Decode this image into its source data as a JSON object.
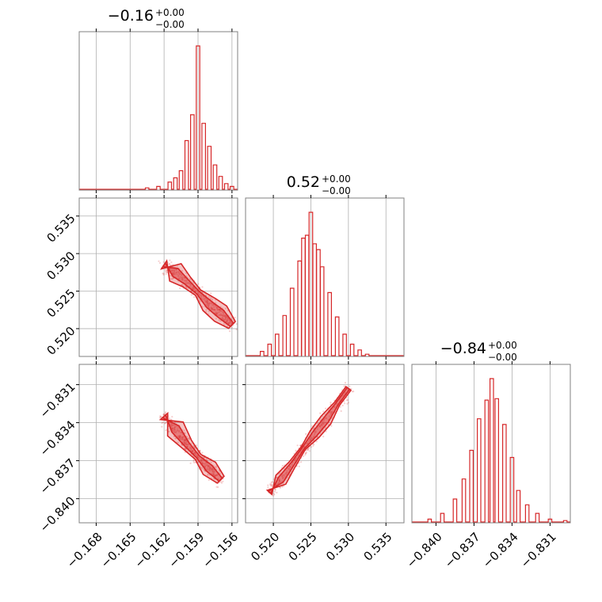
{
  "chart_data": {
    "type": "corner",
    "accent_color": "#d62728",
    "parameters": [
      {
        "title_value": "−0.16",
        "title_plus": "+0.00",
        "title_minus": "−0.00",
        "range": [
          -0.1695,
          -0.1555
        ],
        "ticks": [
          -0.168,
          -0.165,
          -0.162,
          -0.159,
          -0.156
        ],
        "tick_labels": [
          "−0.168",
          "−0.165",
          "−0.162",
          "−0.159",
          "−0.156"
        ],
        "hist_x": [
          -0.1635,
          -0.1625,
          -0.1615,
          -0.161,
          -0.1605,
          -0.16,
          -0.1595,
          -0.159,
          -0.1585,
          -0.158,
          -0.1575,
          -0.157,
          -0.1565,
          -0.156
        ],
        "hist_y": [
          0.01,
          0.02,
          0.05,
          0.08,
          0.13,
          0.34,
          0.52,
          1.0,
          0.46,
          0.3,
          0.17,
          0.09,
          0.04,
          0.02
        ]
      },
      {
        "title_value": "0.52",
        "title_plus": "+0.00",
        "title_minus": "−0.00",
        "range": [
          0.5163,
          0.5374
        ],
        "ticks": [
          0.52,
          0.525,
          0.53,
          0.535
        ],
        "tick_labels": [
          "0.520",
          "0.525",
          "0.530",
          "0.535"
        ],
        "hist_x": [
          0.5185,
          0.5195,
          0.5205,
          0.5215,
          0.5225,
          0.5235,
          0.524,
          0.5245,
          0.525,
          0.5255,
          0.526,
          0.5265,
          0.5275,
          0.5285,
          0.5295,
          0.5305,
          0.5315,
          0.5325
        ],
        "hist_y": [
          0.03,
          0.08,
          0.15,
          0.28,
          0.47,
          0.66,
          0.82,
          0.84,
          1.0,
          0.78,
          0.74,
          0.62,
          0.44,
          0.27,
          0.15,
          0.08,
          0.04,
          0.01
        ]
      },
      {
        "title_value": "−0.84",
        "title_plus": "+0.00",
        "title_minus": "−0.00",
        "range": [
          -0.8419,
          -0.8294
        ],
        "ticks": [
          -0.84,
          -0.837,
          -0.834,
          -0.831
        ],
        "tick_labels": [
          "−0.840",
          "−0.837",
          "−0.834",
          "−0.831"
        ],
        "hist_x": [
          -0.8405,
          -0.8395,
          -0.8385,
          -0.8378,
          -0.8372,
          -0.8366,
          -0.836,
          -0.8356,
          -0.8352,
          -0.8346,
          -0.834,
          -0.8335,
          -0.8328,
          -0.832,
          -0.831,
          -0.8298
        ],
        "hist_y": [
          0.02,
          0.06,
          0.16,
          0.3,
          0.5,
          0.72,
          0.85,
          1.0,
          0.86,
          0.68,
          0.45,
          0.22,
          0.12,
          0.06,
          0.02,
          0.01
        ]
      }
    ],
    "pairs": [
      {
        "row": 1,
        "col": 0,
        "ridge": [
          [
            -0.162,
            0.5285
          ],
          [
            -0.161,
            0.5275
          ],
          [
            -0.16,
            0.5262
          ],
          [
            -0.159,
            0.5248
          ],
          [
            -0.158,
            0.5232
          ],
          [
            -0.157,
            0.522
          ],
          [
            -0.156,
            0.5205
          ]
        ]
      },
      {
        "row": 2,
        "col": 0,
        "ridge": [
          [
            -0.162,
            -0.8335
          ],
          [
            -0.161,
            -0.8345
          ],
          [
            -0.16,
            -0.8357
          ],
          [
            -0.159,
            -0.8367
          ],
          [
            -0.158,
            -0.8376
          ],
          [
            -0.157,
            -0.8385
          ]
        ]
      },
      {
        "row": 2,
        "col": 1,
        "ridge": [
          [
            0.5195,
            -0.8395
          ],
          [
            0.521,
            -0.8385
          ],
          [
            0.5225,
            -0.8373
          ],
          [
            0.524,
            -0.836
          ],
          [
            0.5255,
            -0.8349
          ],
          [
            0.527,
            -0.8338
          ],
          [
            0.5285,
            -0.8325
          ],
          [
            0.53,
            -0.8313
          ]
        ]
      }
    ],
    "grid": true
  }
}
